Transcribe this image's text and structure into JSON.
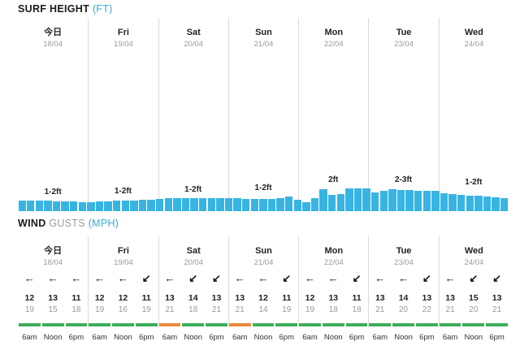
{
  "surf": {
    "title": "SURF HEIGHT",
    "unit": "(FT)"
  },
  "wind": {
    "title": "WIND",
    "gusts": "GUSTS",
    "unit": "(MPH)"
  },
  "days": [
    {
      "name": "今日",
      "date": "18/04"
    },
    {
      "name": "Fri",
      "date": "19/04"
    },
    {
      "name": "Sat",
      "date": "20/04"
    },
    {
      "name": "Sun",
      "date": "21/04"
    },
    {
      "name": "Mon",
      "date": "22/04"
    },
    {
      "name": "Tue",
      "date": "23/04"
    },
    {
      "name": "Wed",
      "date": "24/04"
    }
  ],
  "surf_labels": [
    "1-2ft",
    "1-2ft",
    "1-2ft",
    "1-2ft",
    "2ft",
    "2-3ft",
    "1-2ft"
  ],
  "surf_bar_heights_ft": [
    1.25,
    1.25,
    1.2,
    1.2,
    1.15,
    1.1,
    1.1,
    1.05,
    1.05,
    1.1,
    1.15,
    1.2,
    1.2,
    1.25,
    1.3,
    1.35,
    1.45,
    1.5,
    1.5,
    1.55,
    1.55,
    1.55,
    1.55,
    1.55,
    1.55,
    1.55,
    1.45,
    1.45,
    1.45,
    1.45,
    1.55,
    1.7,
    1.3,
    1.05,
    1.5,
    2.6,
    1.95,
    2.0,
    2.65,
    2.65,
    2.65,
    2.15,
    2.4,
    2.55,
    2.45,
    2.45,
    2.4,
    2.35,
    2.35,
    2.1,
    2.0,
    1.9,
    1.85,
    1.8,
    1.75,
    1.65,
    1.55
  ],
  "wind_data": [
    {
      "dir": "west",
      "speed": "12",
      "gust": "19"
    },
    {
      "dir": "west",
      "speed": "13",
      "gust": "15"
    },
    {
      "dir": "west",
      "speed": "11",
      "gust": "18"
    },
    {
      "dir": "west",
      "speed": "12",
      "gust": "19"
    },
    {
      "dir": "west",
      "speed": "12",
      "gust": "16"
    },
    {
      "dir": "southwest",
      "speed": "11",
      "gust": "19"
    },
    {
      "dir": "west",
      "speed": "13",
      "gust": "21"
    },
    {
      "dir": "southwest",
      "speed": "14",
      "gust": "18"
    },
    {
      "dir": "southwest",
      "speed": "13",
      "gust": "21"
    },
    {
      "dir": "west",
      "speed": "13",
      "gust": "21"
    },
    {
      "dir": "west",
      "speed": "12",
      "gust": "14"
    },
    {
      "dir": "southwest",
      "speed": "11",
      "gust": "19"
    },
    {
      "dir": "west",
      "speed": "12",
      "gust": "19"
    },
    {
      "dir": "west",
      "speed": "13",
      "gust": "18"
    },
    {
      "dir": "southwest",
      "speed": "11",
      "gust": "18"
    },
    {
      "dir": "west",
      "speed": "13",
      "gust": "21"
    },
    {
      "dir": "west",
      "speed": "14",
      "gust": "20"
    },
    {
      "dir": "southwest",
      "speed": "13",
      "gust": "22"
    },
    {
      "dir": "west",
      "speed": "13",
      "gust": "21"
    },
    {
      "dir": "southwest",
      "speed": "15",
      "gust": "20"
    },
    {
      "dir": "southwest",
      "speed": "13",
      "gust": "21"
    }
  ],
  "times": [
    "6am",
    "Noon",
    "6pm",
    "6am",
    "Noon",
    "6pm",
    "6am",
    "Noon",
    "6pm",
    "6am",
    "Noon",
    "6pm",
    "6am",
    "Noon",
    "6pm",
    "6am",
    "Noon",
    "6pm",
    "6am",
    "Noon",
    "6pm"
  ],
  "rating_colors": {
    "good": "#3fae5d",
    "fair": "#e98a3a"
  },
  "rating_states": [
    "good",
    "good",
    "good",
    "good",
    "good",
    "good",
    "fair",
    "good",
    "good",
    "fair",
    "good",
    "good",
    "good",
    "good",
    "good",
    "good",
    "good",
    "good",
    "good",
    "good",
    "good"
  ]
}
